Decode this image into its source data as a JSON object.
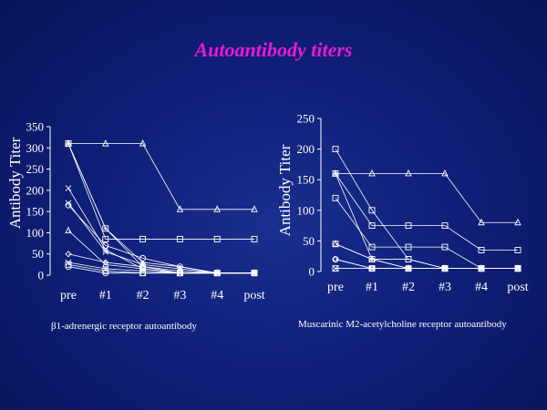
{
  "title": "Autoantibody titers",
  "captions": {
    "left": "β1-adrenergic receptor autoantibody",
    "right": "Muscarinic M2-acetylcholine receptor autoantibody"
  },
  "colors": {
    "title": "#e81ad8",
    "lines": "#ffffff",
    "background": "#10207a"
  },
  "chart_data": [
    {
      "type": "line",
      "ylabel": "Antibody  Titer",
      "xlabel": "",
      "categories": [
        "pre",
        "#1",
        "#2",
        "#3",
        "#4",
        "post"
      ],
      "ylim": [
        0,
        350
      ],
      "yticks": [
        0,
        50,
        100,
        150,
        200,
        250,
        300,
        350
      ],
      "series": [
        {
          "marker": "triangle",
          "values": [
            310,
            310,
            310,
            155,
            155,
            155
          ]
        },
        {
          "marker": "square",
          "values": [
            310,
            85,
            85,
            85,
            85,
            85
          ]
        },
        {
          "marker": "dot",
          "values": [
            310,
            110,
            30,
            20,
            5,
            5
          ]
        },
        {
          "marker": "square",
          "values": [
            310,
            110,
            20,
            5,
            5,
            5
          ]
        },
        {
          "marker": "x",
          "values": [
            205,
            60,
            15,
            5,
            5,
            5
          ]
        },
        {
          "marker": "x",
          "values": [
            170,
            55,
            25,
            15,
            5,
            5
          ]
        },
        {
          "marker": "circle",
          "values": [
            165,
            70,
            40,
            20,
            5,
            5
          ]
        },
        {
          "marker": "triangle",
          "values": [
            105,
            25,
            15,
            5,
            5,
            5
          ]
        },
        {
          "marker": "diamond",
          "values": [
            50,
            30,
            20,
            10,
            5,
            5
          ]
        },
        {
          "marker": "x",
          "values": [
            30,
            15,
            10,
            5,
            5,
            5
          ]
        },
        {
          "marker": "square",
          "values": [
            25,
            10,
            5,
            5,
            5,
            5
          ]
        },
        {
          "marker": "circle",
          "values": [
            20,
            5,
            5,
            5,
            5,
            5
          ]
        }
      ]
    },
    {
      "type": "line",
      "ylabel": "Antibody  Titer",
      "xlabel": "",
      "categories": [
        "pre",
        "#1",
        "#2",
        "#3",
        "#4",
        "post"
      ],
      "ylim": [
        0,
        250
      ],
      "yticks": [
        0,
        50,
        100,
        150,
        200,
        250
      ],
      "series": [
        {
          "marker": "triangle",
          "values": [
            160,
            160,
            160,
            160,
            80,
            80
          ]
        },
        {
          "marker": "square",
          "values": [
            200,
            100,
            20,
            5,
            5,
            5
          ]
        },
        {
          "marker": "square",
          "values": [
            160,
            75,
            75,
            75,
            35,
            35
          ]
        },
        {
          "marker": "square",
          "values": [
            120,
            40,
            40,
            40,
            5,
            5
          ]
        },
        {
          "marker": "dot",
          "values": [
            160,
            20,
            5,
            5,
            5,
            5
          ]
        },
        {
          "marker": "square",
          "values": [
            45,
            20,
            20,
            5,
            5,
            5
          ]
        },
        {
          "marker": "triangle",
          "values": [
            45,
            20,
            5,
            5,
            5,
            5
          ]
        },
        {
          "marker": "diamond",
          "values": [
            20,
            5,
            5,
            5,
            5,
            5
          ]
        },
        {
          "marker": "circle",
          "values": [
            20,
            5,
            5,
            5,
            5,
            5
          ]
        },
        {
          "marker": "x",
          "values": [
            5,
            5,
            5,
            5,
            5,
            5
          ]
        },
        {
          "marker": "square",
          "values": [
            5,
            5,
            5,
            5,
            5,
            5
          ]
        }
      ]
    }
  ]
}
